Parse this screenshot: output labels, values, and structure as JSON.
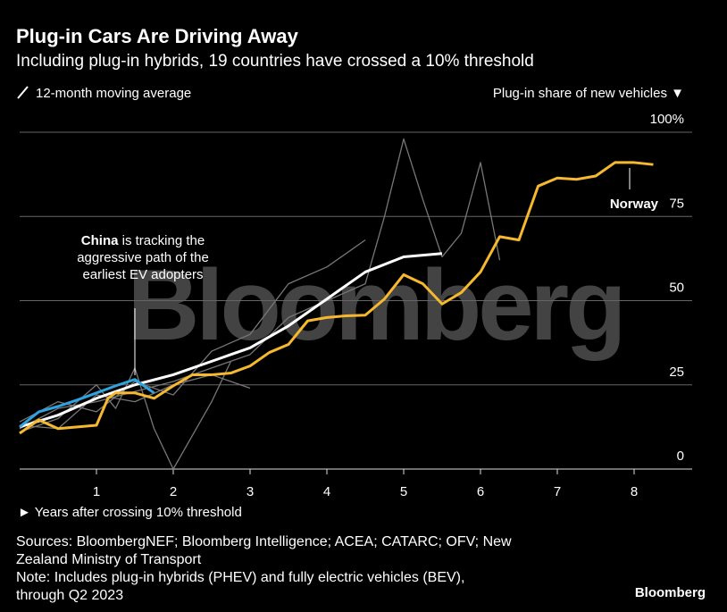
{
  "chart_data": {
    "type": "line",
    "title": "Plug-in Cars Are Driving Away",
    "subtitle": "Including plug-in hybrids, 19 countries have crossed a 10% threshold",
    "legend_note": "12-month moving average",
    "y_label": "Plug-in share of new vehicles ▼",
    "x_label": "► Years after crossing 10% threshold",
    "annotation": [
      "is tracking the",
      "aggressive path of the",
      "earliest EV adopters"
    ],
    "watermark": "Bloomberg",
    "sources": [
      "Sources: BloombergNEF; Bloomberg Intelligence; ACEA; CATARC; OFV; New",
      "Zealand Ministry of Transport",
      "Note: Includes plug-in hybrids (PHEV) and fully electric vehicles (BEV),",
      "through Q2 2023"
    ],
    "logo": "Bloomberg",
    "xlim": [
      0,
      8.75
    ],
    "xticks": [
      1,
      2,
      3,
      4,
      5,
      6,
      7,
      8
    ],
    "ylim": [
      0,
      100
    ],
    "yticks": [
      0,
      25,
      50,
      75,
      {
        "value": 100,
        "label": "100%"
      }
    ],
    "grid": true,
    "series": [
      {
        "color": "#777777",
        "x": [
          0,
          0.5,
          1,
          1.5,
          2,
          2.5,
          3,
          3.5,
          4,
          4.5,
          4.75,
          5,
          5.25,
          5.5,
          5.75,
          6,
          6.25
        ],
        "values": [
          12,
          18,
          20,
          23,
          26,
          30,
          34,
          45,
          50,
          55,
          75,
          98,
          80,
          63,
          70,
          91,
          62
        ]
      },
      {
        "color": "#777777",
        "x": [
          0,
          0.5,
          1,
          1.5,
          2,
          2.5,
          3,
          3.5,
          4,
          4.5
        ],
        "values": [
          14,
          20,
          17,
          26,
          22,
          35,
          40,
          55,
          60,
          68
        ]
      },
      {
        "color": "#777777",
        "x": [
          0,
          0.5,
          1,
          1.25,
          1.5,
          1.75,
          2,
          2.5,
          2.75
        ],
        "values": [
          11,
          15,
          25,
          18,
          30,
          12,
          0,
          20,
          32
        ]
      },
      {
        "color": "#777777",
        "x": [
          0,
          0.5,
          1,
          1.5,
          2,
          2.5,
          3
        ],
        "values": [
          13,
          12,
          22,
          20,
          25,
          28,
          24
        ]
      },
      {
        "color": "#ffffff",
        "x": [
          0,
          0.5,
          1,
          1.5,
          2,
          2.5,
          3,
          3.5,
          4,
          4.5,
          5,
          5.5
        ],
        "values": [
          12.5,
          16,
          21,
          25,
          28,
          32,
          36,
          42.5,
          50.5,
          58.5,
          63,
          64
        ]
      },
      {
        "name": "China",
        "color": "#2ea3e0",
        "x": [
          0,
          0.25,
          0.5,
          0.75,
          1,
          1.25,
          1.5,
          1.75
        ],
        "values": [
          12.5,
          17,
          18.6,
          20.5,
          22.6,
          24.7,
          26.6,
          22.6
        ]
      },
      {
        "name": "Norway",
        "color": "#f5b82e",
        "x": [
          0,
          0.25,
          0.5,
          0.75,
          1,
          1.15,
          1.25,
          1.5,
          1.75,
          2,
          2.25,
          2.5,
          2.75,
          3,
          3.25,
          3.5,
          3.75,
          4,
          4.25,
          4.5,
          4.75,
          5,
          5.25,
          5.5,
          5.75,
          6,
          6.25,
          6.5,
          6.75,
          7,
          7.25,
          7.5,
          7.75,
          8,
          8.25
        ],
        "values": [
          10.6,
          14.6,
          12,
          12.5,
          13,
          21,
          22.6,
          22.6,
          21,
          24.7,
          28,
          28,
          28.5,
          30.6,
          34.6,
          37,
          44,
          45,
          45.5,
          45.7,
          50.5,
          57.7,
          55,
          49,
          52.4,
          58.5,
          69,
          68,
          84,
          86.4,
          86,
          87,
          91,
          91,
          90.4
        ]
      }
    ]
  }
}
